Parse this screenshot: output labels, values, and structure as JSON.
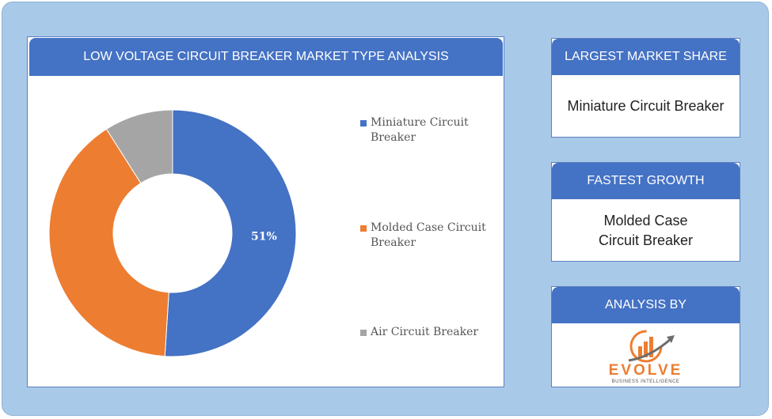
{
  "title": "LOW VOLTAGE CIRCUIT BREAKER MARKET TYPE ANALYSIS",
  "chart_data": {
    "type": "pie",
    "donut": true,
    "categories": [
      "Miniature Circuit Breaker",
      "Molded Case Circuit Breaker",
      "Air Circuit Breaker"
    ],
    "values": [
      51,
      40,
      9
    ],
    "data_labels": [
      "51%",
      "",
      ""
    ],
    "colors": [
      "#4472c4",
      "#ed7d31",
      "#a5a5a5"
    ],
    "legend_position": "right"
  },
  "sidebar": {
    "largest": {
      "header": "LARGEST MARKET SHARE",
      "value": "Miniature Circuit Breaker"
    },
    "fastest": {
      "header": "FASTEST GROWTH",
      "value": "Molded Case Circuit Breaker"
    },
    "analysis": {
      "header": "ANALYSIS BY",
      "logo_name": "EVOLVE",
      "logo_tagline": "BUSINESS INTELLIGENCE"
    }
  }
}
